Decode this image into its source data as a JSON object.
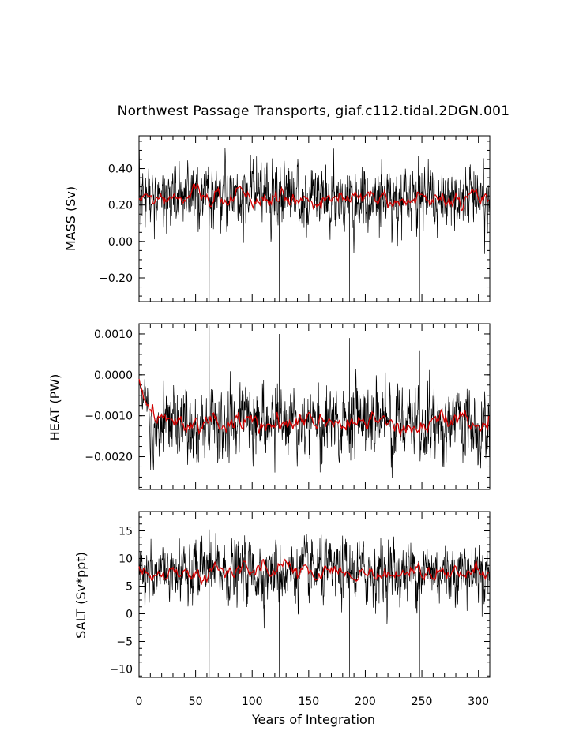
{
  "chart_data": {
    "title": "Northwest Passage Transports, giaf.c112.tidal.2DGN.001",
    "type": "line",
    "xlabel": "Years of Integration",
    "xlim": [
      0,
      310
    ],
    "x_ticks": [
      "0",
      "50",
      "100",
      "150",
      "200",
      "250",
      "300"
    ],
    "colors": {
      "raw": "#000000",
      "smooth": "#d40000"
    },
    "panels": [
      {
        "ylabel": "MASS (Sv)",
        "ylim": [
          -0.33,
          0.58
        ],
        "y_ticks": [
          {
            "v": 0.4,
            "t": "0.40"
          },
          {
            "v": 0.2,
            "t": "0.20"
          },
          {
            "v": 0.0,
            "t": "0.00"
          },
          {
            "v": -0.2,
            "t": "−0.20"
          }
        ],
        "series": [
          {
            "values": {
              "mean": 0.24,
              "std": 0.085,
              "dips": [
                {
                  "x": 62,
                  "y": -0.33
                },
                {
                  "x": 124,
                  "y": -0.33
                },
                {
                  "x": 186,
                  "y": -0.33
                },
                {
                  "x": 248,
                  "y": -0.33
                }
              ],
              "start": null
            }
          },
          {
            "values": {
              "mean": 0.24,
              "std": 0.035
            }
          }
        ]
      },
      {
        "ylabel": "HEAT (PW)",
        "ylim": [
          -0.0028,
          0.00125
        ],
        "y_ticks": [
          {
            "v": 0.001,
            "t": "0.0010"
          },
          {
            "v": 0.0,
            "t": "0.0000"
          },
          {
            "v": -0.001,
            "t": "−0.0010"
          },
          {
            "v": -0.002,
            "t": "−0.0020"
          }
        ],
        "series": [
          {
            "values": {
              "mean": -0.00115,
              "std": 0.00045,
              "spikes": [
                {
                  "x": 62,
                  "y": 0.0012
                },
                {
                  "x": 124,
                  "y": 0.001
                },
                {
                  "x": 186,
                  "y": 0.0009
                },
                {
                  "x": 248,
                  "y": 0.0006
                }
              ],
              "start": -0.0001
            }
          },
          {
            "values": {
              "mean": -0.00115,
              "std": 0.00018
            }
          }
        ]
      },
      {
        "ylabel": "SALT (Sv*ppt)",
        "ylim": [
          -11.5,
          18.5
        ],
        "y_ticks": [
          {
            "v": 15,
            "t": "15"
          },
          {
            "v": 10,
            "t": "10"
          },
          {
            "v": 5,
            "t": "5"
          },
          {
            "v": 0,
            "t": "0"
          },
          {
            "v": -5,
            "t": "−5"
          },
          {
            "v": -10,
            "t": "−10"
          }
        ],
        "series": [
          {
            "values": {
              "mean": 7.6,
              "std": 2.8,
              "dips": [
                {
                  "x": 62,
                  "y": -11.5
                },
                {
                  "x": 124,
                  "y": -11.5
                },
                {
                  "x": 186,
                  "y": -11.5
                },
                {
                  "x": 248,
                  "y": -11.5
                }
              ],
              "start": null
            }
          },
          {
            "values": {
              "mean": 7.6,
              "std": 1.1
            }
          }
        ]
      }
    ]
  }
}
